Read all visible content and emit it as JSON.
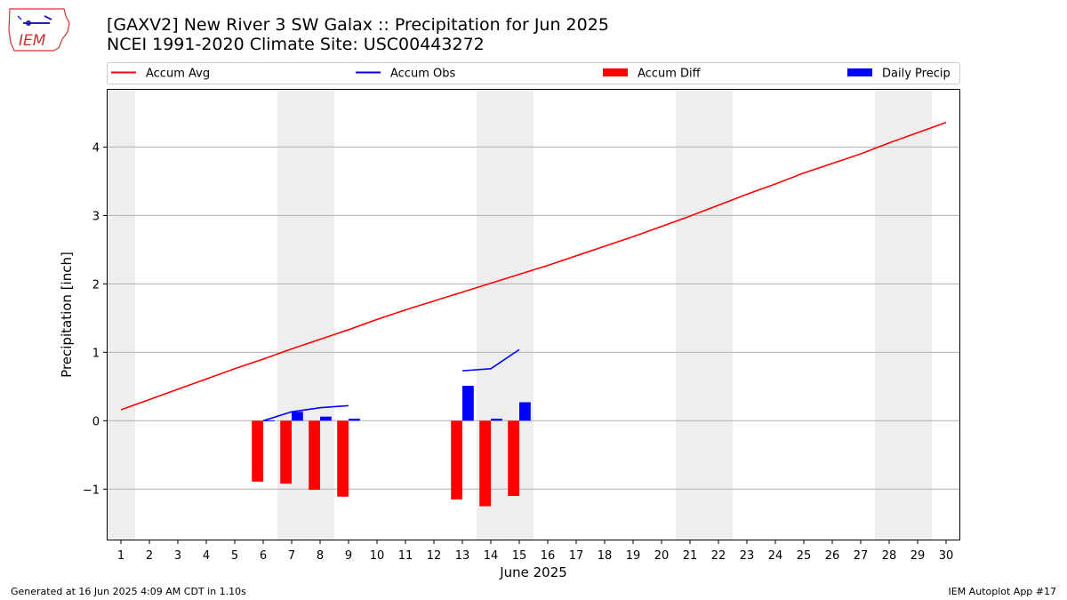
{
  "header": {
    "logo_text": "IEM",
    "title_line1": "[GAXV2] New River 3 SW Galax :: Precipitation for Jun 2025",
    "title_line2": "NCEI 1991-2020 Climate Site: USC00443272"
  },
  "footer": {
    "generated": "Generated at 16 Jun 2025 4:09 AM CDT in 1.10s",
    "app": "IEM Autoplot App #17"
  },
  "colors": {
    "accum_avg": "#ff0000",
    "accum_obs": "#0000ff",
    "accum_diff": "#ff0000",
    "daily_precip": "#0000ff",
    "weekend_shade": "#eeeeee",
    "grid": "#b0b0b0"
  },
  "chart_data": {
    "type": "bar",
    "xlabel": "June 2025",
    "ylabel": "Precipitation [inch]",
    "xlim": [
      0.5,
      30.5
    ],
    "ylim": [
      -1.75,
      4.85
    ],
    "yticks": [
      -1,
      0,
      1,
      2,
      3,
      4
    ],
    "ytick_labels": [
      "−1",
      "0",
      "1",
      "2",
      "3",
      "4"
    ],
    "days": [
      1,
      2,
      3,
      4,
      5,
      6,
      7,
      8,
      9,
      10,
      11,
      12,
      13,
      14,
      15,
      16,
      17,
      18,
      19,
      20,
      21,
      22,
      23,
      24,
      25,
      26,
      27,
      28,
      29,
      30
    ],
    "weekend_days": [
      1,
      7,
      8,
      14,
      15,
      21,
      22,
      28,
      29
    ],
    "grid": true,
    "legend_position": "top",
    "legend": [
      "Accum Avg",
      "Accum Obs",
      "Accum Diff",
      "Daily Precip"
    ],
    "series": [
      {
        "name": "Accum Avg",
        "type": "line",
        "x": [
          1,
          2,
          3,
          4,
          5,
          6,
          7,
          8,
          9,
          10,
          11,
          12,
          13,
          14,
          15,
          16,
          17,
          18,
          19,
          20,
          21,
          22,
          23,
          24,
          25,
          26,
          27,
          28,
          29,
          30
        ],
        "values": [
          0.16,
          0.31,
          0.46,
          0.61,
          0.76,
          0.9,
          1.05,
          1.19,
          1.33,
          1.48,
          1.62,
          1.75,
          1.88,
          2.01,
          2.14,
          2.27,
          2.41,
          2.55,
          2.69,
          2.84,
          2.99,
          3.15,
          3.31,
          3.46,
          3.62,
          3.76,
          3.9,
          4.06,
          4.21,
          4.36
        ]
      },
      {
        "name": "Accum Obs",
        "type": "line",
        "segments": [
          {
            "x": [
              6,
              7,
              8,
              9
            ],
            "values": [
              0.0,
              0.13,
              0.19,
              0.22
            ]
          },
          {
            "x": [
              13,
              14,
              15
            ],
            "values": [
              0.73,
              0.76,
              1.04
            ]
          }
        ]
      },
      {
        "name": "Accum Diff",
        "type": "bar",
        "x": [
          6,
          7,
          8,
          9,
          13,
          14,
          15
        ],
        "values": [
          -0.89,
          -0.92,
          -1.01,
          -1.11,
          -1.15,
          -1.25,
          -1.1
        ]
      },
      {
        "name": "Daily Precip",
        "type": "bar",
        "x": [
          6,
          7,
          8,
          9,
          13,
          14,
          15
        ],
        "values": [
          0.005,
          0.13,
          0.06,
          0.03,
          0.51,
          0.03,
          0.27
        ]
      }
    ]
  }
}
